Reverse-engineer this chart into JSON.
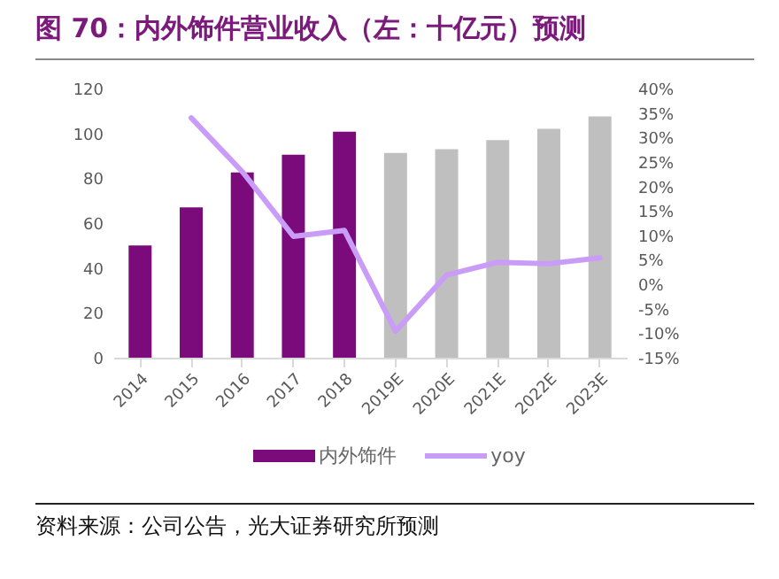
{
  "chart_data": {
    "type": "bar",
    "title": "图 70：内外饰件营业收入（左：十亿元）预测",
    "annotations": [
      "资料来源：公司公告，光大证券研究所预测"
    ],
    "categories": [
      "2014",
      "2015",
      "2016",
      "2017",
      "2018",
      "2019E",
      "2020E",
      "2021E",
      "2022E",
      "2023E"
    ],
    "series": [
      {
        "name": "内外饰件",
        "color": "#7b0a7b",
        "colors": [
          "#7b0a7b",
          "#7b0a7b",
          "#7b0a7b",
          "#7b0a7b",
          "#7b0a7b",
          "#bfbfbf",
          "#bfbfbf",
          "#bfbfbf",
          "#bfbfbf",
          "#bfbfbf"
        ],
        "values": [
          50,
          67,
          82.6,
          90.5,
          100.8,
          91.3,
          93,
          97,
          102,
          107.6
        ]
      },
      {
        "name": "yoy",
        "type": "line",
        "axis": "y2",
        "color": "#c99cf7",
        "values": [
          null,
          34,
          23,
          9.8,
          11,
          -9.6,
          1.9,
          4.5,
          4.2,
          5.4
        ]
      }
    ],
    "ylim": [
      0,
      120
    ],
    "yticks": [
      0,
      20,
      40,
      60,
      80,
      100,
      120
    ],
    "y2lim": [
      -15,
      40
    ],
    "y2ticks": [
      {
        "value": -15,
        "label": "-15%"
      },
      {
        "value": -10,
        "label": "-10%"
      },
      {
        "value": -5,
        "label": "-5%"
      },
      {
        "value": 0,
        "label": "0%"
      },
      {
        "value": 5,
        "label": "5%"
      },
      {
        "value": 10,
        "label": "10%"
      },
      {
        "value": 15,
        "label": "15%"
      },
      {
        "value": 20,
        "label": "20%"
      },
      {
        "value": 25,
        "label": "25%"
      },
      {
        "value": 30,
        "label": "30%"
      },
      {
        "value": 35,
        "label": "35%"
      },
      {
        "value": 40,
        "label": "40%"
      }
    ],
    "grid": false,
    "legend": "bottom"
  }
}
